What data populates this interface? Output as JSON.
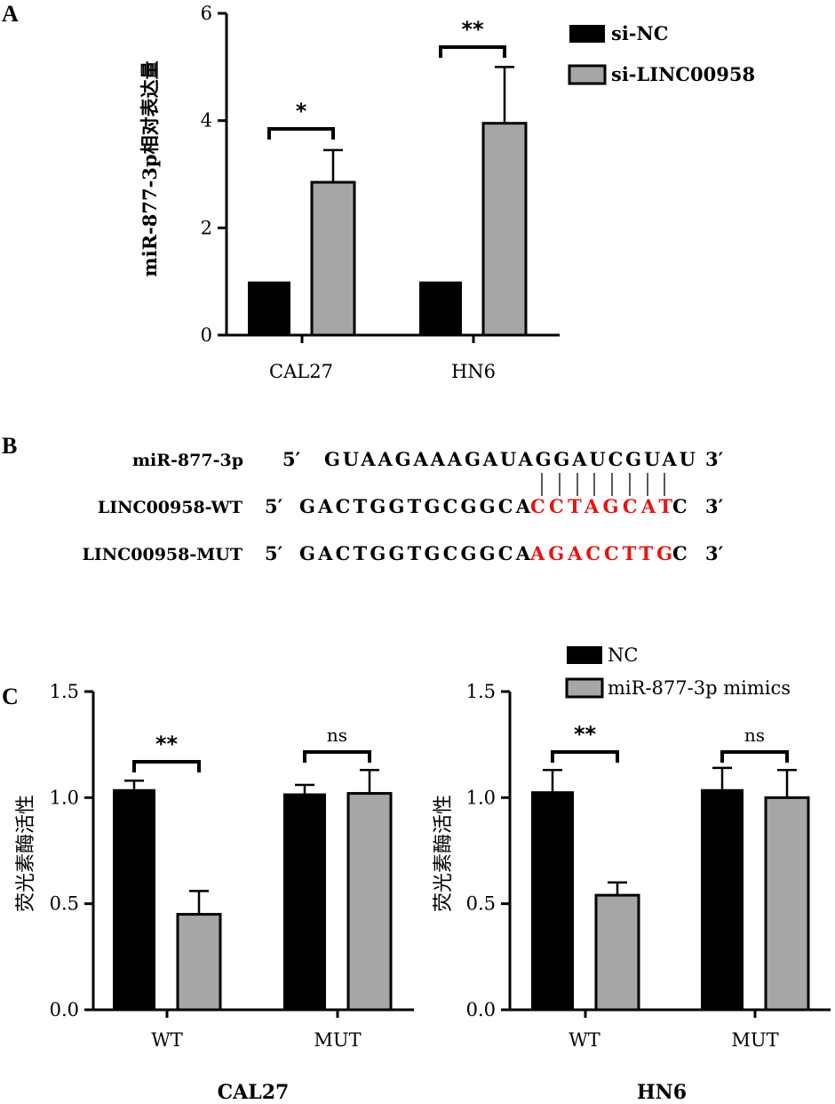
{
  "panels": {
    "a": "A",
    "b": "B",
    "c": "C"
  },
  "colors": {
    "black_bar": "#000000",
    "gray_bar": "#a6a6a6",
    "red": "#e8140f"
  },
  "chart_data": [
    {
      "id": "A",
      "type": "bar",
      "ylabel": "miR-877-3p相对表达量",
      "ylim": [
        0,
        6
      ],
      "yticks": [
        0,
        2,
        4,
        6
      ],
      "categories": [
        "CAL27",
        "HN6"
      ],
      "series": [
        {
          "name": "si-NC",
          "color": "#000000",
          "values": [
            1.0,
            1.0
          ],
          "errors": [
            0,
            0
          ]
        },
        {
          "name": "si-LINC00958",
          "color": "#a6a6a6",
          "values": [
            2.85,
            3.95
          ],
          "errors": [
            0.6,
            1.05
          ]
        }
      ],
      "significance": [
        "*",
        "**"
      ],
      "legend": "top-right"
    },
    {
      "id": "C1",
      "type": "bar",
      "ylabel": "荧光素酶活性",
      "ylim": [
        0,
        1.5
      ],
      "yticks": [
        "0.0",
        "0.5",
        "1.0",
        "1.5"
      ],
      "categories": [
        "WT",
        "MUT"
      ],
      "cell_line": "CAL27",
      "series": [
        {
          "name": "NC",
          "color": "#000000",
          "values": [
            1.04,
            1.02
          ],
          "errors": [
            0.04,
            0.04
          ]
        },
        {
          "name": "miR-877-3p mimics",
          "color": "#a6a6a6",
          "values": [
            0.45,
            1.02
          ],
          "errors": [
            0.11,
            0.11
          ]
        }
      ],
      "significance": [
        "**",
        "ns"
      ]
    },
    {
      "id": "C2",
      "type": "bar",
      "ylabel": "荧光素酶活性",
      "ylim": [
        0,
        1.5
      ],
      "yticks": [
        "0.0",
        "0.5",
        "1.0",
        "1.5"
      ],
      "categories": [
        "WT",
        "MUT"
      ],
      "cell_line": "HN6",
      "series": [
        {
          "name": "NC",
          "color": "#000000",
          "values": [
            1.03,
            1.04
          ],
          "errors": [
            0.1,
            0.1
          ]
        },
        {
          "name": "miR-877-3p mimics",
          "color": "#a6a6a6",
          "values": [
            0.54,
            1.0
          ],
          "errors": [
            0.06,
            0.13
          ]
        }
      ],
      "significance": [
        "**",
        "ns"
      ],
      "legend": "top"
    }
  ],
  "sequences": [
    {
      "name": "miR-877-3p",
      "prime5": "5′",
      "plain": "GUAAGAAAGAUAGGAUCGUAU",
      "red": "",
      "tail": "",
      "prime3": "3′"
    },
    {
      "name": "LINC00958-WT",
      "prime5": "5′",
      "plain": "GACTGGTGCGGCA",
      "red": "CCTAGCAT",
      "tail": "C",
      "prime3": "3′"
    },
    {
      "name": "LINC00958-MUT",
      "prime5": "5′",
      "plain": "GACTGGTGCGGCA",
      "red": "AGACCTTG",
      "tail": "C",
      "prime3": "3′"
    }
  ]
}
